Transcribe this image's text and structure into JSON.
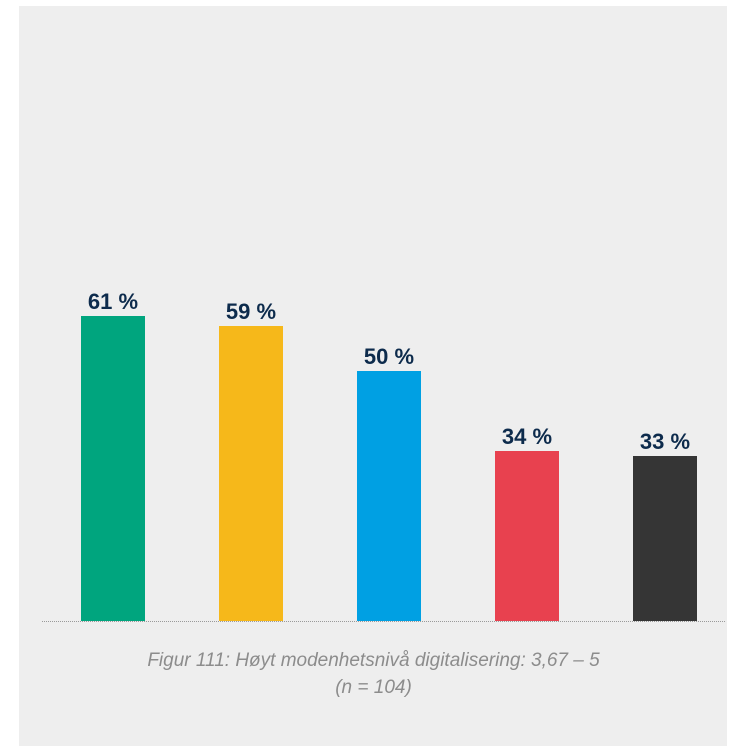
{
  "chart_data": {
    "type": "bar",
    "categories": [
      "",
      "",
      "",
      "",
      ""
    ],
    "values": [
      61,
      59,
      50,
      34,
      33
    ],
    "value_labels": [
      "61 %",
      "59 %",
      "50 %",
      "34 %",
      "33 %"
    ],
    "colors": [
      "#00a57e",
      "#f6b81a",
      "#00a0e3",
      "#e8414f",
      "#353535"
    ],
    "ylim": [
      0,
      100
    ],
    "grid": false,
    "legend": "none",
    "title": "",
    "xlabel": "",
    "ylabel": ""
  },
  "caption": {
    "line1": "Figur 111: Høyt modenhetsnivå digitalisering: 3,67 – 5",
    "line2": "(n = 104)"
  },
  "colors": {
    "panel_background": "#eeeeee",
    "label_text": "#0d2b4c",
    "caption_text": "#8c8c8c",
    "baseline": "#9a9a9a"
  }
}
